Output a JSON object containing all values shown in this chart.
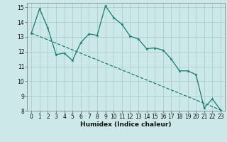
{
  "xlabel": "Humidex (Indice chaleur)",
  "ylabel": "",
  "background_color": "#cce8e8",
  "grid_color": "#aacfcf",
  "line_color": "#1a7a6e",
  "xlim": [
    -0.5,
    23.5
  ],
  "ylim": [
    8,
    15.3
  ],
  "xticks": [
    0,
    1,
    2,
    3,
    4,
    5,
    6,
    7,
    8,
    9,
    10,
    11,
    12,
    13,
    14,
    15,
    16,
    17,
    18,
    19,
    20,
    21,
    22,
    23
  ],
  "yticks": [
    8,
    9,
    10,
    11,
    12,
    13,
    14,
    15
  ],
  "line1_x": [
    0,
    1,
    2,
    3,
    4,
    5,
    6,
    7,
    8,
    9,
    10,
    11,
    12,
    13,
    14,
    15,
    16,
    17,
    18,
    19,
    20,
    21,
    22,
    23
  ],
  "line1_y": [
    13.25,
    14.9,
    13.6,
    11.8,
    11.9,
    11.4,
    12.6,
    13.2,
    13.1,
    15.1,
    14.3,
    13.85,
    13.05,
    12.85,
    12.2,
    12.25,
    12.1,
    11.5,
    10.7,
    10.7,
    10.45,
    8.2,
    8.8,
    8.05
  ],
  "line2_x": [
    0,
    23
  ],
  "line2_y": [
    13.25,
    8.05
  ]
}
